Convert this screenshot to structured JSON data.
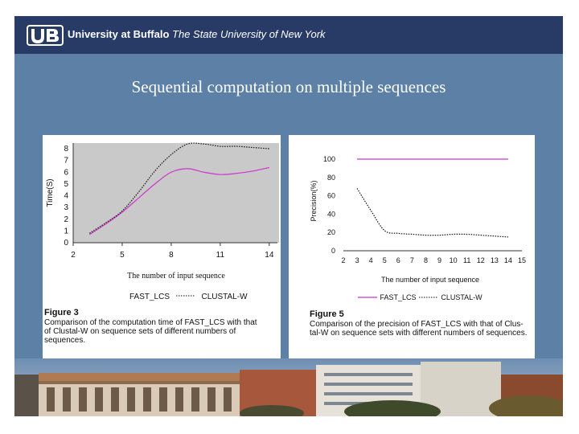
{
  "header": {
    "university": "University at Buffalo",
    "subtitle": "The State University of New York"
  },
  "slide": {
    "title": "Sequential computation on multiple sequences"
  },
  "figure3": {
    "ylabel": "Time(S)",
    "xlabel": "The number of input sequence",
    "legend": [
      "FAST_LCS",
      "CLUSTAL-W"
    ],
    "caption_title": "Figure 3",
    "caption_lines": [
      "Comparison of the computation time of FAST_LCS with that",
      "of Clustal-W on sequence sets of different numbers of",
      "sequences."
    ]
  },
  "figure5": {
    "ylabel": "Precision(%)",
    "xlabel": "The number of input sequence",
    "legend": [
      "FAST_LCS",
      "CLUSTAL-W"
    ],
    "caption_title": "Figure 5",
    "caption_lines": [
      "Comparison of the precision of FAST_LCS with that of Clus-",
      "tal-W on sequence sets with different numbers of sequences."
    ]
  },
  "colors": {
    "fast_lcs": "#cc33cc",
    "clustal_w": "#111111",
    "banner": "#283a66",
    "slide_bg": "#5d80a6"
  },
  "chart_data": [
    {
      "type": "line",
      "title": "",
      "xlabel": "The number of input sequence",
      "ylabel": "Time(S)",
      "xticks": [
        "2",
        "5",
        "8",
        "11",
        "14"
      ],
      "yticks": [
        "0",
        "1",
        "2",
        "3",
        "4",
        "5",
        "6",
        "7",
        "8"
      ],
      "xlim": [
        2,
        14.5
      ],
      "ylim": [
        0,
        8
      ],
      "grid": false,
      "legend": "bottom",
      "series": [
        {
          "name": "FAST_LCS",
          "style": "solid",
          "color": "#cc33cc",
          "x": [
            3,
            4,
            5,
            6,
            7,
            8,
            9,
            10,
            11,
            12,
            13,
            14
          ],
          "y": [
            0.7,
            1.6,
            2.6,
            3.8,
            5.0,
            6.0,
            6.3,
            6.0,
            5.8,
            5.9,
            6.1,
            6.4
          ]
        },
        {
          "name": "CLUSTAL-W",
          "style": "dotted",
          "color": "#111111",
          "x": [
            3,
            4,
            5,
            6,
            7,
            8,
            9,
            10,
            11,
            12,
            13,
            14
          ],
          "y": [
            0.8,
            1.7,
            2.7,
            4.3,
            6.1,
            7.5,
            8.4,
            8.4,
            8.2,
            8.2,
            8.1,
            8.0
          ]
        }
      ]
    },
    {
      "type": "line",
      "title": "",
      "xlabel": "The number of input sequence",
      "ylabel": "Precision(%)",
      "xticks": [
        "2",
        "3",
        "4",
        "5",
        "6",
        "7",
        "8",
        "9",
        "10",
        "11",
        "12",
        "13",
        "14",
        "15"
      ],
      "yticks": [
        "0",
        "20",
        "40",
        "60",
        "80",
        "100"
      ],
      "xlim": [
        2,
        15
      ],
      "ylim": [
        0,
        100
      ],
      "grid": false,
      "legend": "bottom",
      "series": [
        {
          "name": "FAST_LCS",
          "style": "solid",
          "color": "#cc33cc",
          "x": [
            3,
            4,
            5,
            6,
            7,
            8,
            9,
            10,
            11,
            12,
            13,
            14
          ],
          "y": [
            100,
            100,
            100,
            100,
            100,
            100,
            100,
            100,
            100,
            100,
            100,
            100
          ]
        },
        {
          "name": "CLUSTAL-W",
          "style": "dotted",
          "color": "#111111",
          "x": [
            3,
            4,
            5,
            6,
            7,
            8,
            9,
            10,
            11,
            12,
            13,
            14
          ],
          "y": [
            68,
            44,
            22,
            19,
            18,
            17,
            17,
            18,
            18,
            17,
            16,
            15
          ]
        }
      ]
    }
  ]
}
